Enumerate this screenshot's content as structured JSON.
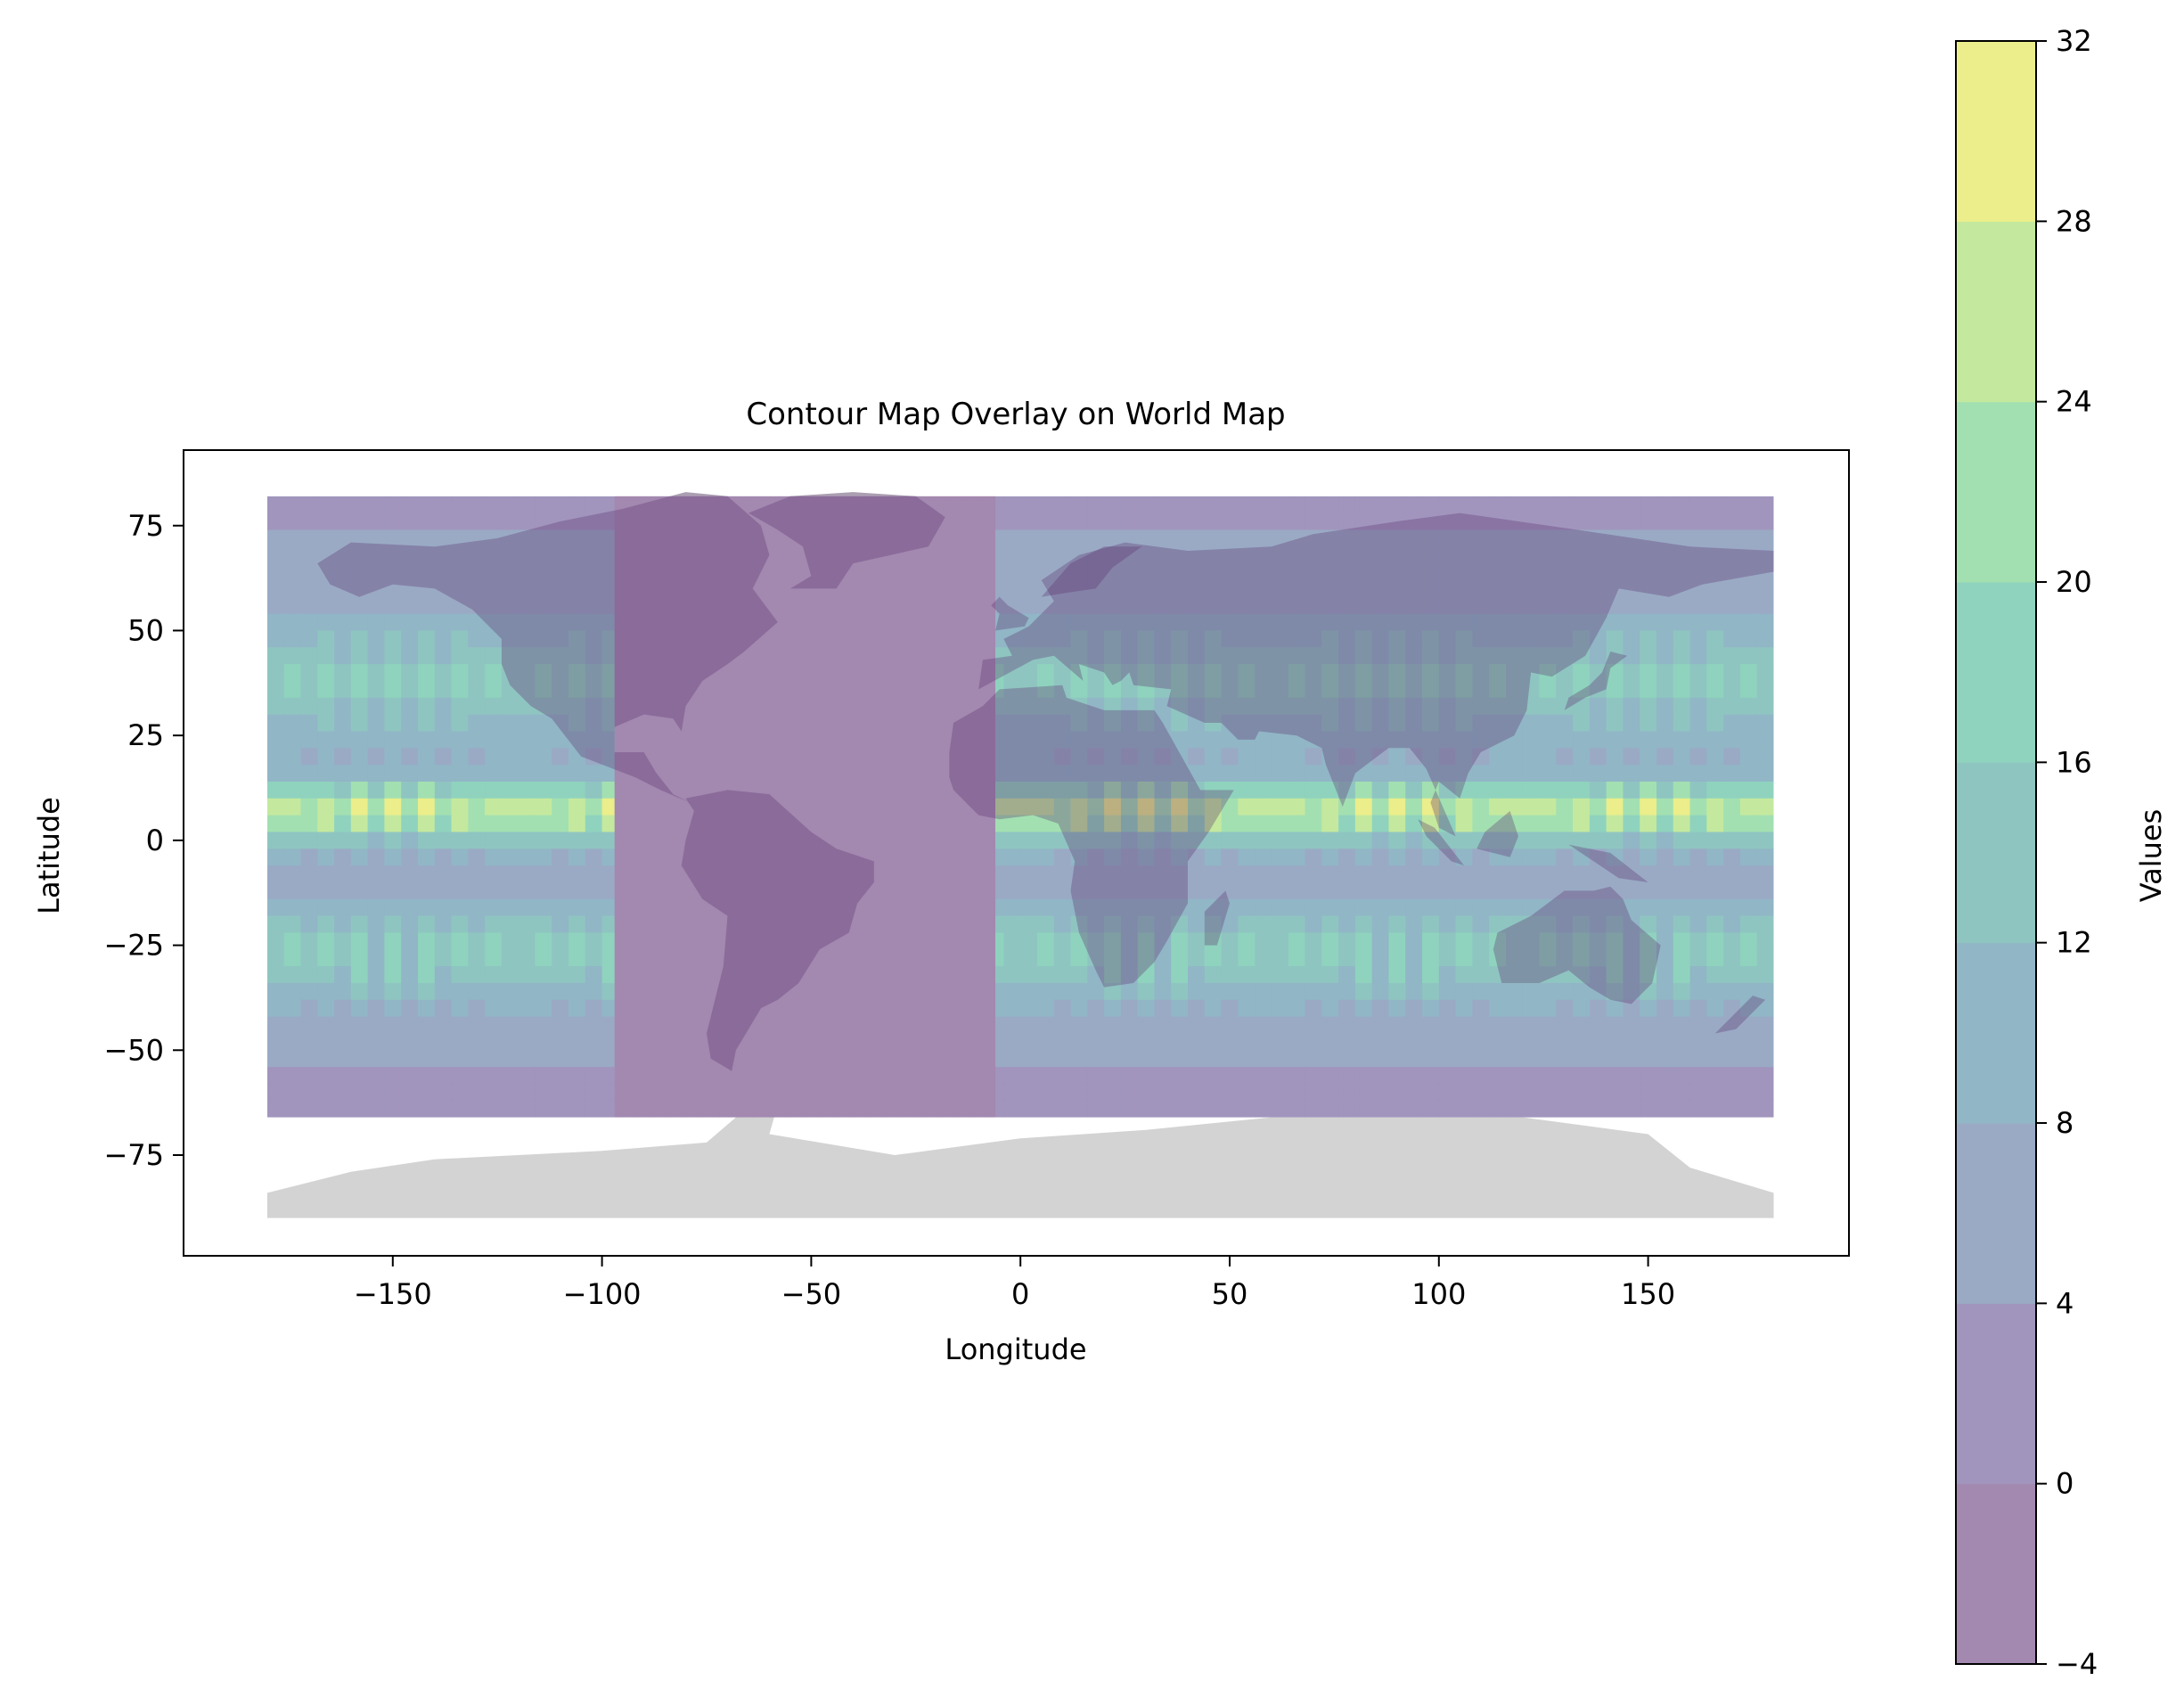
{
  "chart_data": {
    "type": "contour",
    "title": "Contour Map Overlay on World Map",
    "xlabel": "Longitude",
    "ylabel": "Latitude",
    "xlim": [
      -200,
      198
    ],
    "ylim": [
      -99,
      93
    ],
    "xticks": [
      -150,
      -100,
      -50,
      0,
      50,
      100,
      150
    ],
    "xtick_labels": [
      "−150",
      "−100",
      "−50",
      "0",
      "50",
      "100",
      "150"
    ],
    "yticks": [
      75,
      50,
      25,
      0,
      -25,
      -50,
      -75
    ],
    "ytick_labels": [
      "75",
      "50",
      "25",
      "0",
      "−25",
      "−50",
      "−75"
    ],
    "contour_extent": {
      "lon": [
        -180,
        180
      ],
      "lat": [
        -66,
        82
      ]
    },
    "basemap_extent": {
      "lon": [
        -180,
        180
      ],
      "lat": [
        -90,
        84
      ]
    },
    "land_color": "#d3d3d3",
    "colorbar": {
      "label": "Values",
      "levels": [
        -4,
        0,
        4,
        8,
        12,
        16,
        20,
        24,
        28,
        32
      ],
      "tick_labels": [
        "−4",
        "0",
        "4",
        "8",
        "12",
        "16",
        "20",
        "24",
        "28",
        "32"
      ],
      "colors": [
        "#a388b0",
        "#a195bd",
        "#9aaac5",
        "#91b6c6",
        "#8fc5c1",
        "#8fd3be",
        "#a3e0b1",
        "#c4e99e",
        "#ebee8a"
      ]
    }
  }
}
